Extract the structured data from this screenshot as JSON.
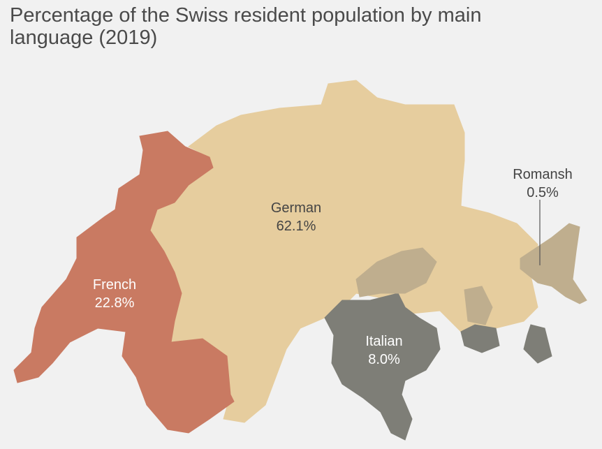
{
  "chart_data": {
    "type": "map",
    "title": "Percentage of the Swiss resident population by main language (2019)",
    "categories": [
      "German",
      "French",
      "Italian",
      "Romansh"
    ],
    "values": [
      62.1,
      22.8,
      8.0,
      0.5
    ],
    "value_labels": [
      "62.1%",
      "22.8%",
      "8.0%",
      "0.5%"
    ],
    "colors": [
      "#e6cd9e",
      "#c97a62",
      "#7e7e77",
      "#bfae8e"
    ]
  }
}
